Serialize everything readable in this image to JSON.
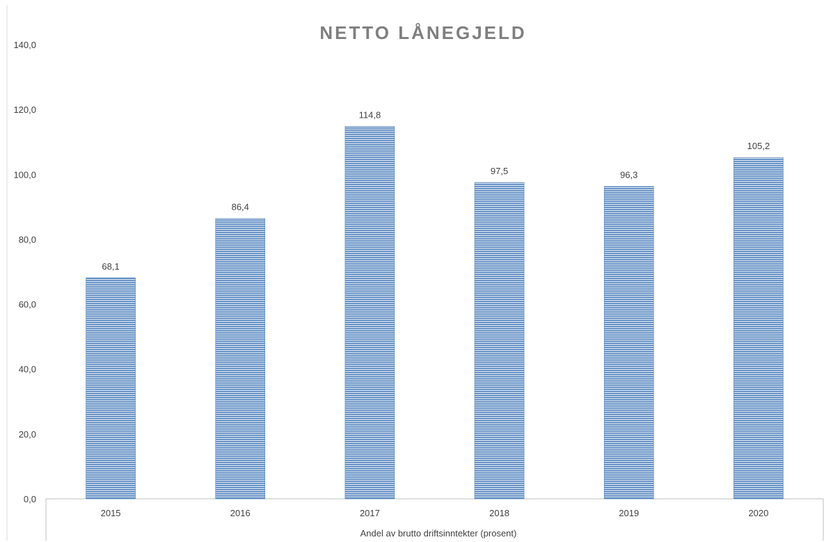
{
  "chart_data": {
    "type": "bar",
    "title": "NETTO LÅNEGJELD",
    "xlabel": "Andel av brutto driftsinntekter (prosent)",
    "ylabel": "",
    "categories": [
      "2015",
      "2016",
      "2017",
      "2018",
      "2019",
      "2020"
    ],
    "values": [
      68.1,
      86.4,
      114.8,
      97.5,
      96.3,
      105.2
    ],
    "data_labels": [
      "68,1",
      "86,4",
      "114,8",
      "97,5",
      "96,3",
      "105,2"
    ],
    "yticks": [
      0,
      20,
      40,
      60,
      80,
      100,
      120,
      140
    ],
    "ytick_labels": [
      "0,0",
      "20,0",
      "40,0",
      "60,0",
      "80,0",
      "100,0",
      "120,0",
      "140,0"
    ],
    "ylim": [
      0,
      140
    ],
    "grid": false,
    "legend": "none",
    "bar_color": "#4f81bd",
    "bar_stripe_color": "#dbe5f1"
  }
}
